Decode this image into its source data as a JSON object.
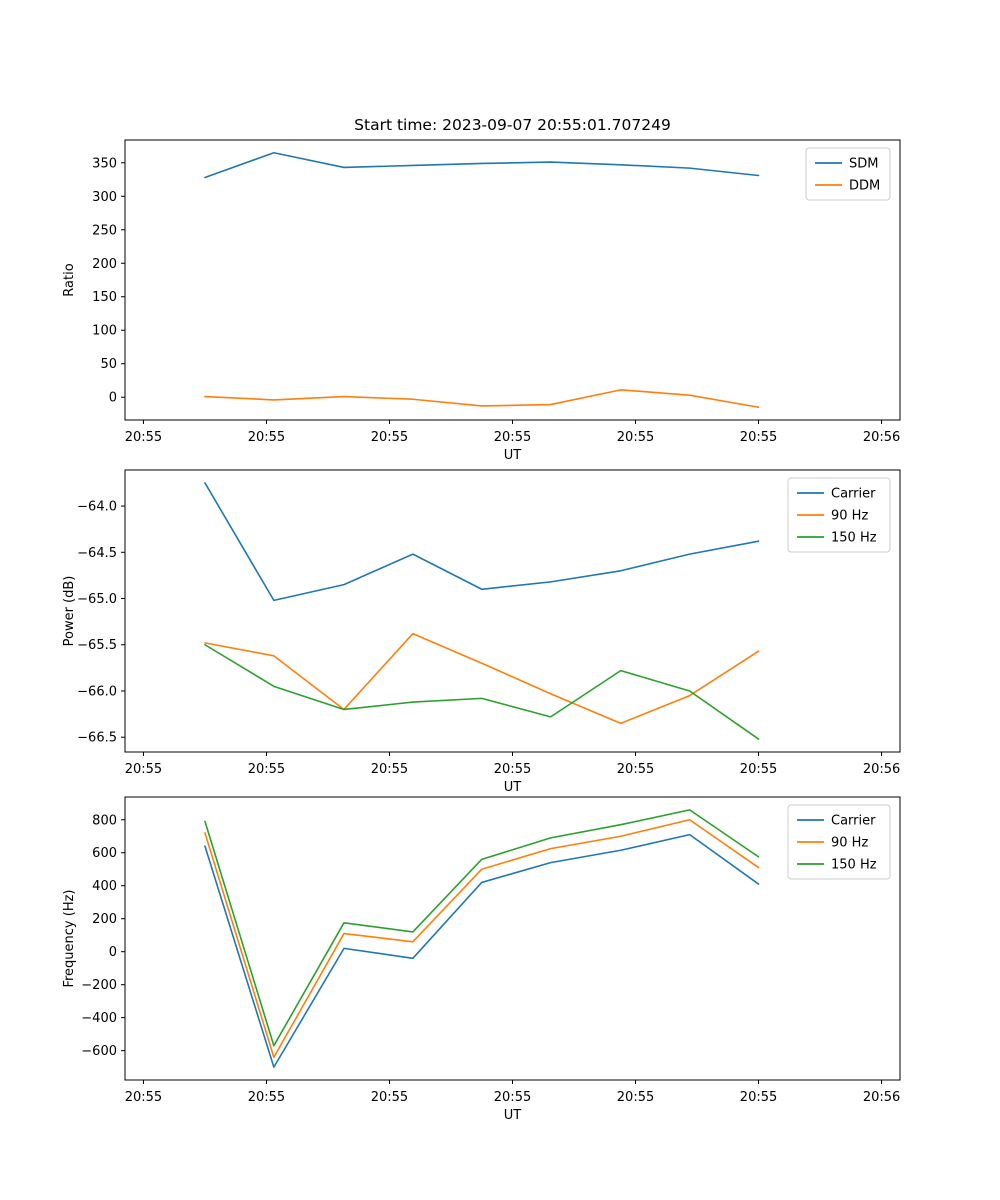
{
  "figure": {
    "title": "Start time: 2023-09-07 20:55:01.707249"
  },
  "chart_data": [
    {
      "id": "ratio-plot",
      "type": "line",
      "xlabel": "UT",
      "ylabel": "Ratio",
      "grid": false,
      "legend_position": "upper right",
      "xlim": [
        -1.5,
        61.5
      ],
      "ylim": [
        -34,
        384
      ],
      "x": [
        5,
        10.6,
        16.3,
        21.9,
        27.5,
        33.1,
        38.8,
        44.4,
        50
      ],
      "xticks": [
        {
          "t": 0,
          "label": "20:55"
        },
        {
          "t": 10,
          "label": "20:55"
        },
        {
          "t": 20,
          "label": "20:55"
        },
        {
          "t": 30,
          "label": "20:55"
        },
        {
          "t": 40,
          "label": "20:55"
        },
        {
          "t": 50,
          "label": "20:55"
        },
        {
          "t": 60,
          "label": "20:56"
        }
      ],
      "yticks": [
        {
          "v": 0,
          "label": "0"
        },
        {
          "v": 50,
          "label": "50"
        },
        {
          "v": 100,
          "label": "100"
        },
        {
          "v": 150,
          "label": "150"
        },
        {
          "v": 200,
          "label": "200"
        },
        {
          "v": 250,
          "label": "250"
        },
        {
          "v": 300,
          "label": "300"
        },
        {
          "v": 350,
          "label": "350"
        }
      ],
      "series": [
        {
          "name": "SDM",
          "color": "#1f77b4",
          "values": [
            328,
            365,
            343,
            346,
            349,
            351,
            347,
            342,
            331
          ]
        },
        {
          "name": "DDM",
          "color": "#ff7f0e",
          "values": [
            1,
            -4,
            1,
            -3,
            -13,
            -11,
            11,
            3,
            -15
          ]
        }
      ]
    },
    {
      "id": "power-plot",
      "type": "line",
      "xlabel": "UT",
      "ylabel": "Power (dB)",
      "grid": false,
      "legend_position": "upper right",
      "xlim": [
        -1.5,
        61.5
      ],
      "ylim": [
        -66.66,
        -63.61
      ],
      "x": [
        5,
        10.6,
        16.3,
        21.9,
        27.5,
        33.1,
        38.8,
        44.4,
        50
      ],
      "xticks": [
        {
          "t": 0,
          "label": "20:55"
        },
        {
          "t": 10,
          "label": "20:55"
        },
        {
          "t": 20,
          "label": "20:55"
        },
        {
          "t": 30,
          "label": "20:55"
        },
        {
          "t": 40,
          "label": "20:55"
        },
        {
          "t": 50,
          "label": "20:55"
        },
        {
          "t": 60,
          "label": "20:56"
        }
      ],
      "yticks": [
        {
          "v": -64.0,
          "label": "−64.0"
        },
        {
          "v": -64.5,
          "label": "−64.5"
        },
        {
          "v": -65.0,
          "label": "−65.0"
        },
        {
          "v": -65.5,
          "label": "−65.5"
        },
        {
          "v": -66.0,
          "label": "−66.0"
        },
        {
          "v": -66.5,
          "label": "−66.5"
        }
      ],
      "series": [
        {
          "name": "Carrier",
          "color": "#1f77b4",
          "values": [
            -63.75,
            -65.02,
            -64.85,
            -64.52,
            -64.9,
            -64.82,
            -64.7,
            -64.52,
            -64.38
          ]
        },
        {
          "name": "90 Hz",
          "color": "#ff7f0e",
          "values": [
            -65.48,
            -65.62,
            -66.2,
            -65.38,
            -65.7,
            -66.03,
            -66.35,
            -66.05,
            -65.57
          ]
        },
        {
          "name": "150 Hz",
          "color": "#2ca02c",
          "values": [
            -65.5,
            -65.95,
            -66.2,
            -66.12,
            -66.08,
            -66.28,
            -65.78,
            -66.0,
            -66.52
          ]
        }
      ]
    },
    {
      "id": "frequency-plot",
      "type": "line",
      "xlabel": "UT",
      "ylabel": "Frequency (Hz)",
      "grid": false,
      "legend_position": "upper right",
      "xlim": [
        -1.5,
        61.5
      ],
      "ylim": [
        -778,
        938
      ],
      "x": [
        5,
        10.6,
        16.3,
        21.9,
        27.5,
        33.1,
        38.8,
        44.4,
        50
      ],
      "xticks": [
        {
          "t": 0,
          "label": "20:55"
        },
        {
          "t": 10,
          "label": "20:55"
        },
        {
          "t": 20,
          "label": "20:55"
        },
        {
          "t": 30,
          "label": "20:55"
        },
        {
          "t": 40,
          "label": "20:55"
        },
        {
          "t": 50,
          "label": "20:55"
        },
        {
          "t": 60,
          "label": "20:56"
        }
      ],
      "yticks": [
        {
          "v": -600,
          "label": "−600"
        },
        {
          "v": -400,
          "label": "−400"
        },
        {
          "v": -200,
          "label": "−200"
        },
        {
          "v": 0,
          "label": "0"
        },
        {
          "v": 200,
          "label": "200"
        },
        {
          "v": 400,
          "label": "400"
        },
        {
          "v": 600,
          "label": "600"
        },
        {
          "v": 800,
          "label": "800"
        }
      ],
      "series": [
        {
          "name": "Carrier",
          "color": "#1f77b4",
          "values": [
            640,
            -700,
            20,
            -40,
            420,
            540,
            615,
            710,
            410
          ]
        },
        {
          "name": "90 Hz",
          "color": "#ff7f0e",
          "values": [
            720,
            -640,
            110,
            60,
            500,
            625,
            700,
            800,
            510
          ]
        },
        {
          "name": "150 Hz",
          "color": "#2ca02c",
          "values": [
            790,
            -570,
            175,
            120,
            560,
            690,
            770,
            860,
            575
          ]
        }
      ]
    }
  ]
}
